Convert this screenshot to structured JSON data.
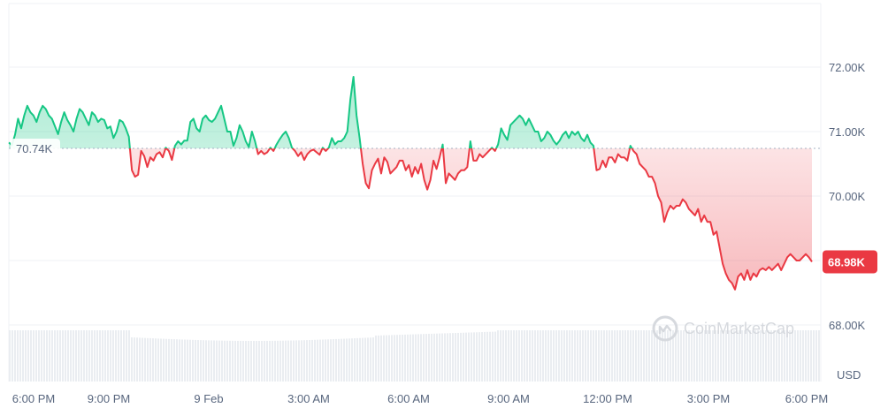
{
  "chart_data": {
    "type": "line",
    "x_tick_labels": [
      "6:00 PM",
      "9:00 PM",
      "9 Feb",
      "3:00 AM",
      "6:00 AM",
      "9:00 AM",
      "12:00 PM",
      "3:00 PM",
      "6:00 PM"
    ],
    "y_tick_labels": [
      "72.00K",
      "71.00K",
      "70.00K",
      "69.00K",
      "68.00K"
    ],
    "y_ticks": [
      72000,
      71000,
      70000,
      69000,
      68000
    ],
    "ylim": [
      67700,
      73000
    ],
    "baseline_value": 70740,
    "baseline_label": "70.74K",
    "current_value": 68980,
    "current_label": "68.98K",
    "currency_label": "USD",
    "watermark_text": "CoinMarketCap",
    "colors": {
      "up": "#16c784",
      "down": "#ea3943",
      "grid": "#eff2f5",
      "axis_text": "#58667e",
      "volume": "#eaedf1"
    },
    "grid": true,
    "series": [
      {
        "values": [
          70830,
          70790,
          70950,
          71200,
          71050,
          71250,
          71400,
          71300,
          71250,
          71150,
          71300,
          71400,
          71350,
          71250,
          71200,
          71080,
          70960,
          71150,
          71300,
          71180,
          71100,
          71000,
          71200,
          71350,
          71300,
          71200,
          71100,
          71300,
          71250,
          71150,
          71200,
          71180,
          71050,
          71080,
          70900,
          71000,
          71180,
          71150,
          71050,
          70920,
          70400,
          70300,
          70330,
          70700,
          70620,
          70450,
          70600,
          70550,
          70650,
          70680,
          70600,
          70750,
          70700,
          70560,
          70780,
          70850,
          70800,
          70860,
          70860,
          71150,
          71200,
          71050,
          71000,
          71200,
          71250,
          71180,
          71150,
          71200,
          71300,
          71400,
          71200,
          71000,
          71000,
          70780,
          70900,
          71100,
          71000,
          70850,
          70760,
          71000,
          70850,
          70650,
          70700,
          70650,
          70680,
          70750,
          70700,
          70800,
          70880,
          70950,
          71000,
          70900,
          70750,
          70700,
          70620,
          70680,
          70560,
          70650,
          70700,
          70720,
          70680,
          70640,
          70750,
          70700,
          70750,
          70900,
          70800,
          70850,
          70850,
          70900,
          71000,
          71500,
          71850,
          71250,
          70900,
          70500,
          70200,
          70120,
          70400,
          70500,
          70580,
          70350,
          70600,
          70530,
          70350,
          70400,
          70450,
          70550,
          70550,
          70400,
          70480,
          70300,
          70450,
          70350,
          70500,
          70250,
          70100,
          70250,
          70550,
          70420,
          70600,
          70800,
          70200,
          70350,
          70300,
          70250,
          70350,
          70400,
          70400,
          70450,
          70850,
          70550,
          70550,
          70650,
          70600,
          70650,
          70700,
          70750,
          70700,
          70800,
          71050,
          70950,
          70870,
          71100,
          71150,
          71200,
          71250,
          71200,
          71100,
          71200,
          71100,
          71000,
          71000,
          70850,
          70900,
          71000,
          70950,
          70860,
          70800,
          70860,
          70950,
          71000,
          70900,
          71000,
          70950,
          71000,
          70900,
          70850,
          70950,
          70830,
          70780,
          70400,
          70420,
          70550,
          70450,
          70600,
          70600,
          70520,
          70650,
          70600,
          70600,
          70550,
          70780,
          70700,
          70650,
          70500,
          70450,
          70400,
          70300,
          70300,
          70200,
          70000,
          69900,
          69600,
          69750,
          69850,
          69800,
          69850,
          69850,
          69950,
          69900,
          69800,
          69750,
          69700,
          69800,
          69600,
          69700,
          69600,
          69600,
          69400,
          69450,
          69200,
          68950,
          68800,
          68700,
          68650,
          68550,
          68750,
          68800,
          68700,
          68850,
          68700,
          68800,
          68750,
          68850,
          68880,
          68850,
          68900,
          68850,
          68900,
          68950,
          68850,
          68950,
          69050,
          69100,
          69050,
          69000,
          69000,
          69050,
          69100,
          69050,
          68980
        ]
      }
    ]
  }
}
